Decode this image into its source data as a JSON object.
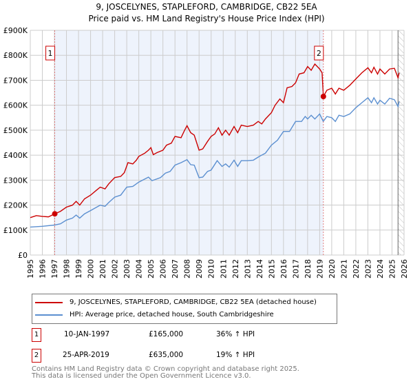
{
  "chart_data": {
    "type": "line",
    "title": "9, JOSCELYNES, STAPLEFORD, CAMBRIDGE, CB22 5EA",
    "subtitle": "Price paid vs. HM Land Registry's House Price Index (HPI)",
    "xlim": [
      1995,
      2026
    ],
    "ylim": [
      0,
      900000
    ],
    "y_ticks": [
      {
        "v": 0,
        "label": "£0"
      },
      {
        "v": 100000,
        "label": "£100K"
      },
      {
        "v": 200000,
        "label": "£200K"
      },
      {
        "v": 300000,
        "label": "£300K"
      },
      {
        "v": 400000,
        "label": "£400K"
      },
      {
        "v": 500000,
        "label": "£500K"
      },
      {
        "v": 600000,
        "label": "£600K"
      },
      {
        "v": 700000,
        "label": "£700K"
      },
      {
        "v": 800000,
        "label": "£800K"
      },
      {
        "v": 900000,
        "label": "£900K"
      }
    ],
    "x_ticks": [
      "1995",
      "1996",
      "1997",
      "1998",
      "1999",
      "2000",
      "2001",
      "2002",
      "2003",
      "2004",
      "2005",
      "2006",
      "2007",
      "2008",
      "2009",
      "2010",
      "2011",
      "2012",
      "2013",
      "2014",
      "2015",
      "2016",
      "2017",
      "2018",
      "2019",
      "2020",
      "2021",
      "2022",
      "2023",
      "2024",
      "2025",
      "2026"
    ],
    "shaded_range": [
      1997.03,
      2019.31
    ],
    "hatched_from": 2025.5,
    "series": [
      {
        "name": "9, JOSCELYNES, STAPLEFORD, CAMBRIDGE, CB22 5EA (detached house)",
        "color": "#cc0000",
        "x": [
          1995,
          1995.5,
          1996,
          1996.5,
          1997.03,
          1997.5,
          1998,
          1998.5,
          1998.8,
          1999.1,
          1999.5,
          2000,
          2000.5,
          2000.8,
          2001.2,
          2001.5,
          2002,
          2002.5,
          2002.8,
          2003.1,
          2003.5,
          2003.8,
          2004,
          2004.5,
          2004.8,
          2005,
          2005.2,
          2005.5,
          2006,
          2006.3,
          2006.7,
          2007,
          2007.5,
          2007.8,
          2008,
          2008.3,
          2008.6,
          2009,
          2009.3,
          2009.7,
          2010,
          2010.3,
          2010.6,
          2010.9,
          2011.2,
          2011.5,
          2011.9,
          2012.2,
          2012.5,
          2013,
          2013.5,
          2013.9,
          2014.2,
          2014.5,
          2015,
          2015.3,
          2015.7,
          2016,
          2016.3,
          2016.7,
          2017,
          2017.3,
          2017.7,
          2018,
          2018.3,
          2018.6,
          2019,
          2019.2,
          2019.31,
          2019.6,
          2020,
          2020.3,
          2020.6,
          2021,
          2021.5,
          2022,
          2022.5,
          2023,
          2023.3,
          2023.5,
          2023.8,
          2024,
          2024.4,
          2024.8,
          2025.2,
          2025.5,
          2025.6
        ],
        "y": [
          150,
          158,
          155,
          153,
          165,
          175,
          192,
          200,
          215,
          200,
          225,
          240,
          260,
          272,
          265,
          285,
          310,
          315,
          330,
          370,
          365,
          380,
          395,
          408,
          420,
          430,
          402,
          410,
          420,
          440,
          448,
          475,
          470,
          500,
          518,
          490,
          480,
          420,
          425,
          455,
          475,
          485,
          510,
          480,
          500,
          480,
          515,
          490,
          520,
          515,
          520,
          535,
          525,
          545,
          570,
          600,
          625,
          610,
          670,
          675,
          690,
          725,
          730,
          755,
          740,
          765,
          745,
          730,
          635,
          660,
          668,
          645,
          668,
          660,
          680,
          705,
          730,
          750,
          730,
          752,
          725,
          745,
          725,
          745,
          748,
          710,
          730
        ]
      },
      {
        "name": "HPI: Average price, detached house, South Cambridgeshire",
        "color": "#5b8fd0",
        "x": [
          1995,
          1996,
          1997,
          1997.5,
          1998,
          1998.5,
          1998.8,
          1999.1,
          1999.5,
          2000,
          2000.8,
          2001.2,
          2001.5,
          2002,
          2002.5,
          2003,
          2003.5,
          2004,
          2004.8,
          2005.1,
          2005.8,
          2006.2,
          2006.6,
          2007,
          2007.5,
          2008,
          2008.3,
          2008.6,
          2009,
          2009.3,
          2009.7,
          2010,
          2010.5,
          2010.9,
          2011.2,
          2011.5,
          2011.9,
          2012.2,
          2012.5,
          2013,
          2013.5,
          2014,
          2014.5,
          2015,
          2015.5,
          2016,
          2016.5,
          2017,
          2017.5,
          2017.8,
          2018,
          2018.3,
          2018.6,
          2019,
          2019.3,
          2019.6,
          2020,
          2020.3,
          2020.6,
          2021,
          2021.5,
          2022,
          2022.5,
          2023,
          2023.3,
          2023.5,
          2023.8,
          2024,
          2024.4,
          2024.8,
          2025.2,
          2025.5,
          2025.6
        ],
        "y": [
          112,
          115,
          120,
          125,
          140,
          148,
          160,
          148,
          165,
          178,
          200,
          195,
          210,
          232,
          240,
          272,
          275,
          292,
          312,
          298,
          310,
          328,
          335,
          360,
          370,
          382,
          362,
          360,
          310,
          312,
          335,
          340,
          378,
          355,
          365,
          352,
          380,
          355,
          378,
          378,
          380,
          395,
          408,
          440,
          460,
          495,
          495,
          535,
          535,
          555,
          545,
          560,
          545,
          565,
          535,
          555,
          550,
          535,
          560,
          555,
          565,
          590,
          610,
          630,
          610,
          630,
          605,
          620,
          605,
          628,
          622,
          595,
          615
        ]
      }
    ],
    "y_unit_multiplier": 1000,
    "sales": [
      {
        "id": "1",
        "x": 1997.03,
        "price": 165000,
        "date": "10-JAN-1997",
        "price_label": "£165,000",
        "hpi": "36% ↑ HPI"
      },
      {
        "id": "2",
        "x": 2019.31,
        "price": 635000,
        "date": "25-APR-2019",
        "price_label": "£635,000",
        "hpi": "19% ↑ HPI"
      }
    ]
  },
  "legend": {
    "red": "9, JOSCELYNES, STAPLEFORD, CAMBRIDGE, CB22 5EA (detached house)",
    "blue": "HPI: Average price, detached house, South Cambridgeshire"
  },
  "footer": {
    "line1": "Contains HM Land Registry data © Crown copyright and database right 2025.",
    "line2": "This data is licensed under the Open Government Licence v3.0."
  }
}
